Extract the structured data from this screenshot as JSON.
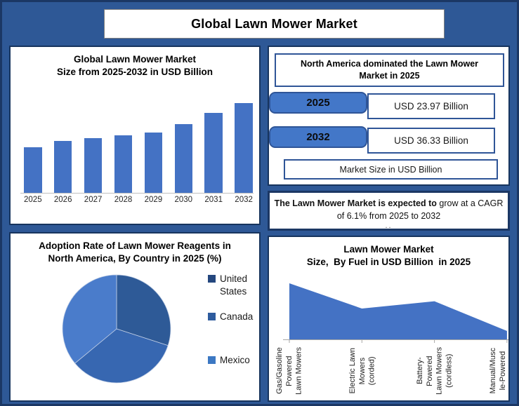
{
  "colors": {
    "background": "#2e5896",
    "outer_border": "#1b3764",
    "panel_border": "#17345e",
    "inner_box_border": "#2f5597",
    "accent_fill": "#4472c4",
    "pill_fill": "#4377c8"
  },
  "header": {
    "title": "Global Lawn Mower Market"
  },
  "bar_panel": {
    "title_line1": "Global Lawn Mower Market",
    "title_line2": "Size from 2025-2032 in USD Billion"
  },
  "na_panel": {
    "title": "North America dominated the Lawn Mower Market in 2025",
    "rows": [
      {
        "year": "2025",
        "value": "USD 23.97 Billion"
      },
      {
        "year": "2032",
        "value": "USD 36.33 Billion"
      }
    ],
    "footer": "Market Size in USD Billion"
  },
  "cagr_panel": {
    "line1_bold": "The Lawn Mower Market is expected to",
    "line1_regular": " grow at a CAGR",
    "line2": "of 6.1% from 2025 to 2032",
    "ellipsis": ".."
  },
  "pie_panel": {
    "title_line1": "Adoption Rate of Lawn Mower Reagents in",
    "title_line2": "North America, By Country in 2025 (%)"
  },
  "area_panel": {
    "title_line1": "Lawn Mower Market",
    "title_line2": "Size,  By Fuel in USD Billion  in 2025"
  },
  "chart_data": [
    {
      "type": "bar",
      "title": "Global Lawn Mower Market Size from 2025-2032 in USD Billion",
      "categories": [
        "2025",
        "2026",
        "2027",
        "2028",
        "2029",
        "2030",
        "2031",
        "2032"
      ],
      "values": [
        23.97,
        25.6,
        26.5,
        27.3,
        28.1,
        30.5,
        33.6,
        36.33
      ],
      "xlabel": "",
      "ylabel": "USD Billion",
      "grid": false,
      "bar_color": "#4472c4"
    },
    {
      "type": "pie",
      "title": "Adoption Rate of Lawn Mower Reagents in North America, By Country in 2025 (%)",
      "labels": [
        "United States",
        "Canada",
        "Mexico"
      ],
      "values": [
        30,
        34,
        36
      ],
      "colors": [
        "#2e5a97",
        "#3767b1",
        "#4a7ccb"
      ],
      "legend_colors": [
        "#24477e",
        "#2e5c9e",
        "#3c78c3"
      ],
      "legend_position": "right",
      "start_angle_deg": 0,
      "direction": "clockwise"
    },
    {
      "type": "area",
      "title": "Lawn Mower Market Size,  By Fuel in USD Billion  in 2025",
      "categories": [
        "Gas/Gasoline Powered Lawn Mowers",
        "Electric Lawn Mowers (corded)",
        "Battery-Powered Lawn Mowers (cordless)",
        "Manual/Muscle-Powered"
      ],
      "tick_lines": [
        "Gas/Gasoline\nPowered\nLawn Mowers",
        "Electric Lawn\nMowers\n(corded)",
        "Battery-\nPowered\nLawn Mowers\n(cordless)",
        "Manual/Musc\nle-Powered"
      ],
      "values": [
        10,
        5.5,
        6.8,
        1.5
      ],
      "ylim": [
        0,
        12
      ],
      "grid": false,
      "fill_color": "#4472c4"
    }
  ]
}
